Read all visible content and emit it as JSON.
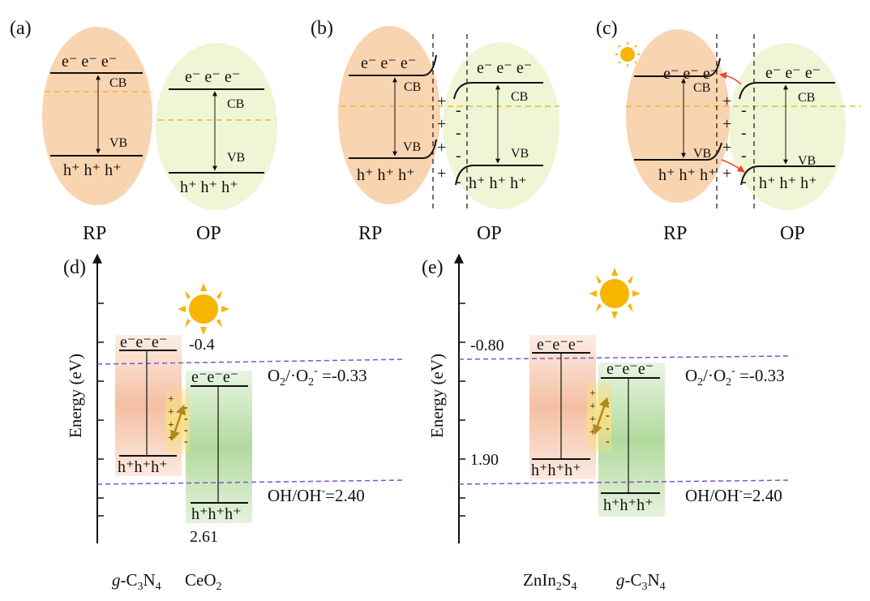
{
  "panels": {
    "a": {
      "label": "(a)",
      "left_caption": "RP",
      "right_caption": "OP",
      "cb": "CB",
      "vb": "VB",
      "electrons": "e⁻ e⁻ e⁻",
      "holes": "h⁺ h⁺ h⁺"
    },
    "b": {
      "label": "(b)",
      "left_caption": "RP",
      "right_caption": "OP",
      "cb": "CB",
      "vb": "VB",
      "electrons": "e⁻ e⁻ e⁻",
      "holes": "h⁺ h⁺ h⁺"
    },
    "c": {
      "label": "(c)",
      "left_caption": "RP",
      "right_caption": "OP",
      "cb": "CB",
      "vb": "VB",
      "electrons": "e⁻ e⁻ e⁻",
      "holes": "h⁺ h⁺ h⁺"
    }
  },
  "charges": {
    "plus": "+",
    "minus": "-"
  },
  "energy_diagrams": {
    "d": {
      "label": "(d)",
      "y_axis_label": "Energy (eV)",
      "left_material": "g-C3N4",
      "right_material": "CeO2",
      "left_cb_value": "-0.4",
      "right_vb_value": "2.61",
      "electrons": "e⁻e⁻e⁻",
      "holes": "h⁺h⁺h⁺",
      "redox_upper": "O2/·O2⁻ =-0.33",
      "redox_lower": "OH/OH⁻=2.40"
    },
    "e": {
      "label": "(e)",
      "y_axis_label": "Energy (eV)",
      "left_material": "ZnIn2S4",
      "right_material": "g-C3N4",
      "left_cb_value": "-0.80",
      "left_vb_value": "1.90",
      "electrons": "e⁻e⁻e⁻",
      "holes": "h⁺h⁺h⁺",
      "redox_upper": "O2/·O2⁻ =-0.33",
      "redox_lower": "OH/OH⁻=2.40"
    }
  },
  "colors": {
    "rp_fill": "#f9d4b0",
    "op_fill": "#eef6d6",
    "fermi": "#f2b62e",
    "redox_line": "#8a4fc4",
    "left_band": "#f3b898",
    "right_band": "#a9d693",
    "junction": "#f8de84",
    "sun": "#f7b500",
    "arrow_gold": "#b08a19",
    "transfer_arrow": "#e8452f"
  }
}
